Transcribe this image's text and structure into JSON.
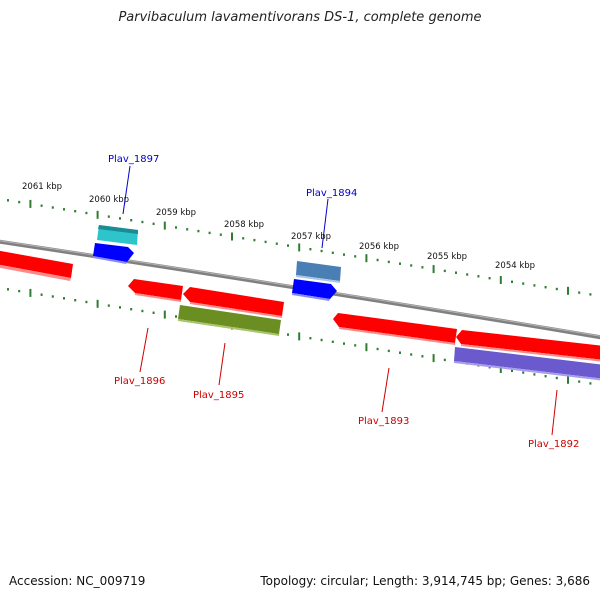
{
  "title": "Parvibaculum lavamentivorans DS-1, complete genome",
  "footer": {
    "accession": "Accession: NC_009719",
    "stats": "Topology: circular; Length: 3,914,745 bp; Genes: 3,686"
  },
  "colors": {
    "backbone": "#808080",
    "tick_track": "#2e7d32",
    "label_forward": "#0000cc",
    "label_reverse": "#cc0000",
    "cds_red": "#ff0000",
    "cds_blue": "#0000ff",
    "cds_cyan": "#2ec4cc",
    "cds_steel": "#4a7fb5",
    "cds_olive": "#6b8e23",
    "cds_purple": "#6a5acd"
  },
  "scale": {
    "unit": "kbp",
    "labels": [
      {
        "kbp": 2061,
        "text": "2061 kbp"
      },
      {
        "kbp": 2060,
        "text": "2060 kbp"
      },
      {
        "kbp": 2059,
        "text": "2059 kbp"
      },
      {
        "kbp": 2058,
        "text": "2058 kbp"
      },
      {
        "kbp": 2057,
        "text": "2057 kbp"
      },
      {
        "kbp": 2056,
        "text": "2056 kbp"
      },
      {
        "kbp": 2055,
        "text": "2055 kbp"
      },
      {
        "kbp": 2054,
        "text": "2054 kbp"
      }
    ]
  },
  "gene_labels": [
    {
      "name": "Plav_1897",
      "strand": "forward"
    },
    {
      "name": "Plav_1894",
      "strand": "forward"
    },
    {
      "name": "Plav_1896",
      "strand": "reverse"
    },
    {
      "name": "Plav_1895",
      "strand": "reverse"
    },
    {
      "name": "Plav_1893",
      "strand": "reverse"
    },
    {
      "name": "Plav_1892",
      "strand": "reverse"
    }
  ]
}
